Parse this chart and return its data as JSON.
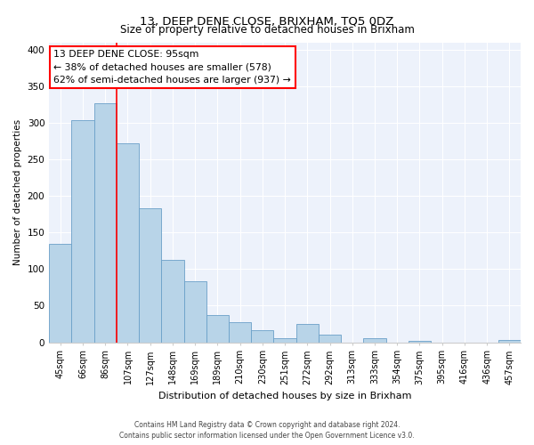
{
  "title": "13, DEEP DENE CLOSE, BRIXHAM, TQ5 0DZ",
  "subtitle": "Size of property relative to detached houses in Brixham",
  "xlabel": "Distribution of detached houses by size in Brixham",
  "ylabel": "Number of detached properties",
  "bar_labels": [
    "45sqm",
    "66sqm",
    "86sqm",
    "107sqm",
    "127sqm",
    "148sqm",
    "169sqm",
    "189sqm",
    "210sqm",
    "230sqm",
    "251sqm",
    "272sqm",
    "292sqm",
    "313sqm",
    "333sqm",
    "354sqm",
    "375sqm",
    "395sqm",
    "416sqm",
    "436sqm",
    "457sqm"
  ],
  "bar_values": [
    135,
    303,
    327,
    272,
    183,
    113,
    83,
    37,
    27,
    17,
    5,
    25,
    10,
    0,
    5,
    0,
    2,
    0,
    0,
    0,
    3
  ],
  "bar_color": "#b8d4e8",
  "bar_edge_color": "#6aa0c8",
  "annotation_line1": "13 DEEP DENE CLOSE: 95sqm",
  "annotation_line2": "← 38% of detached houses are smaller (578)",
  "annotation_line3": "62% of semi-detached houses are larger (937) →",
  "red_line_x": 2.5,
  "ylim": [
    0,
    410
  ],
  "yticks": [
    0,
    50,
    100,
    150,
    200,
    250,
    300,
    350,
    400
  ],
  "footer_line1": "Contains HM Land Registry data © Crown copyright and database right 2024.",
  "footer_line2": "Contains public sector information licensed under the Open Government Licence v3.0.",
  "background_color": "#ffffff",
  "plot_background_color": "#edf2fb",
  "grid_color": "#ffffff",
  "title_fontsize": 9.5,
  "subtitle_fontsize": 8.5,
  "axis_label_fontsize": 7.5,
  "tick_fontsize": 7,
  "annotation_fontsize": 7.8,
  "footer_fontsize": 5.5
}
